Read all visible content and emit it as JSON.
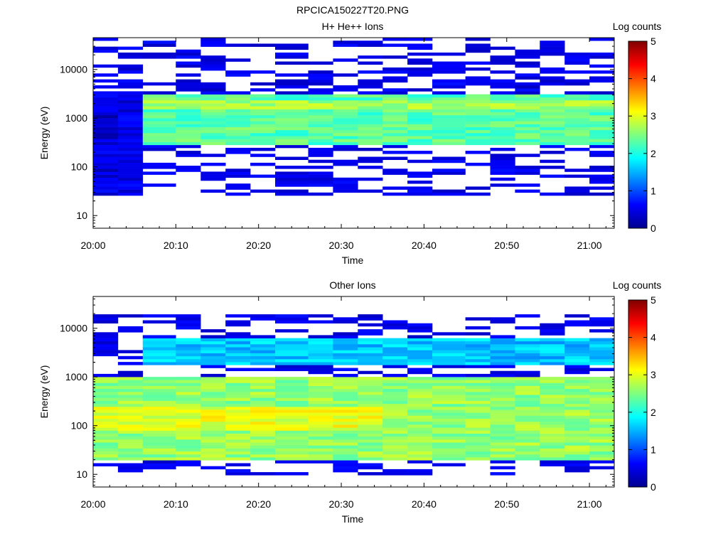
{
  "figure": {
    "title": "RPCICA150227T20.PNG"
  },
  "chart_data": [
    {
      "type": "heatmap",
      "title": "H+ He++ Ions",
      "xlabel": "Time",
      "ylabel": "Energy (eV)",
      "x_ticks": [
        "20:00",
        "20:10",
        "20:20",
        "20:30",
        "20:40",
        "20:50",
        "21:00"
      ],
      "x_range": [
        "20:00",
        "21:03"
      ],
      "y_scale": "log",
      "y_ticks": [
        "10",
        "100",
        "1000",
        "10000"
      ],
      "y_range": [
        5.5,
        45000
      ],
      "colorbar": {
        "label": "Log counts",
        "range": [
          0,
          5
        ],
        "ticks": [
          "0",
          "1",
          "2",
          "3",
          "4",
          "5"
        ],
        "colormap": "jet"
      },
      "colormap_colors": [
        "#00008f",
        "#0000ff",
        "#00ffff",
        "#ffff00",
        "#ff0000",
        "#800000"
      ],
      "time_bins": [
        "20:00",
        "20:03",
        "20:06",
        "20:10",
        "20:13",
        "20:16",
        "20:19",
        "20:22",
        "20:26",
        "20:29",
        "20:32",
        "20:35",
        "20:38",
        "20:41",
        "20:45",
        "20:48",
        "20:51",
        "20:54",
        "20:57",
        "21:00"
      ],
      "bands": [
        {
          "e_min": 300,
          "e_max": 3000,
          "level": 2.3,
          "from": "20:06",
          "to": "21:03"
        },
        {
          "e_min": 1500,
          "e_max": 2500,
          "level": 2.7,
          "from": "20:06",
          "to": "21:03"
        },
        {
          "e_min": 25,
          "e_max": 3500,
          "level": 0.4,
          "from": "20:00",
          "to": "20:06"
        }
      ],
      "sparse_region": {
        "e_min": 25,
        "e_max": 45000,
        "level": 0.3
      }
    },
    {
      "type": "heatmap",
      "title": "Other Ions",
      "xlabel": "Time",
      "ylabel": "Energy (eV)",
      "x_ticks": [
        "20:00",
        "20:10",
        "20:20",
        "20:30",
        "20:40",
        "20:50",
        "21:00"
      ],
      "x_range": [
        "20:00",
        "21:03"
      ],
      "y_scale": "log",
      "y_ticks": [
        "10",
        "100",
        "1000",
        "10000"
      ],
      "y_range": [
        5.5,
        45000
      ],
      "colorbar": {
        "label": "Log counts",
        "range": [
          0,
          5
        ],
        "ticks": [
          "0",
          "1",
          "2",
          "3",
          "4",
          "5"
        ],
        "colormap": "jet"
      },
      "colormap_colors": [
        "#00008f",
        "#0000ff",
        "#00ffff",
        "#ffff00",
        "#ff0000",
        "#800000"
      ],
      "time_bins": [
        "20:00",
        "20:03",
        "20:06",
        "20:10",
        "20:13",
        "20:16",
        "20:19",
        "20:22",
        "20:26",
        "20:29",
        "20:32",
        "20:35",
        "20:38",
        "20:41",
        "20:45",
        "20:48",
        "20:51",
        "20:54",
        "20:57",
        "21:00"
      ],
      "bands": [
        {
          "e_min": 20,
          "e_max": 1000,
          "level": 2.6,
          "from": "20:00",
          "to": "21:03"
        },
        {
          "e_min": 80,
          "e_max": 250,
          "level": 3.0,
          "from": "20:00",
          "to": "20:35"
        },
        {
          "e_min": 1800,
          "e_max": 6000,
          "level": 1.6,
          "from": "20:06",
          "to": "21:03"
        }
      ],
      "sparse_region": {
        "e_min": 10,
        "e_max": 20000,
        "level": 0.3
      }
    }
  ]
}
